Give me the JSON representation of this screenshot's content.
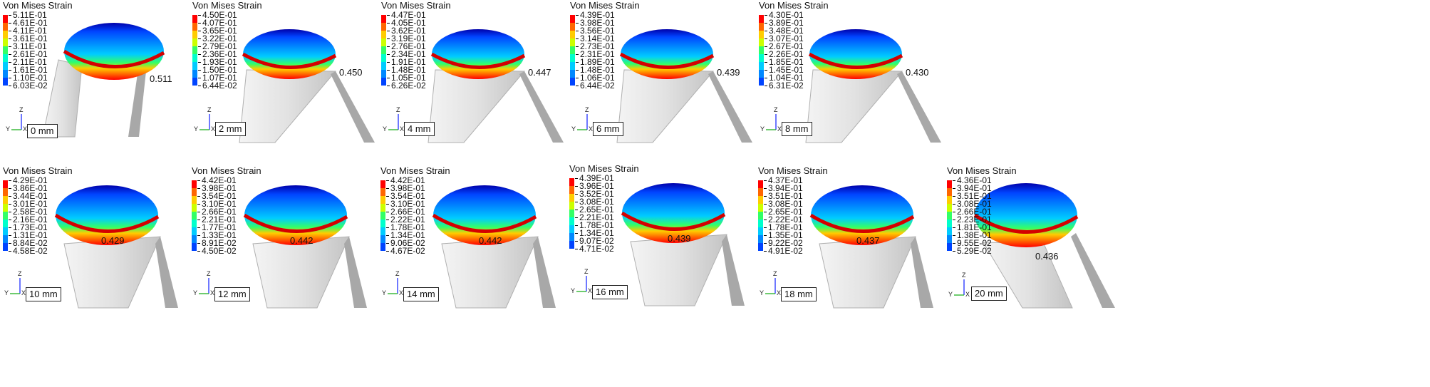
{
  "colors": [
    "#ff0000",
    "#ff6600",
    "#ffcc00",
    "#ccff00",
    "#33ff66",
    "#00ffcc",
    "#00ccff",
    "#0088ff",
    "#0044ff",
    "#0000cc"
  ],
  "panels": [
    {
      "title": "Von Mises Strain",
      "legend": [
        "5.11E-01",
        "4.61E-01",
        "4.11E-01",
        "3.61E-01",
        "3.11E-01",
        "2.61E-01",
        "2.11E-01",
        "1.61E-01",
        "1.10E-01",
        "6.03E-02"
      ],
      "max_label": "0.511",
      "distance": "0 mm",
      "axes": {
        "z": "Z",
        "y": "Y",
        "x": "X"
      }
    },
    {
      "title": "Von Mises Strain",
      "legend": [
        "4.50E-01",
        "4.07E-01",
        "3.65E-01",
        "3.22E-01",
        "2.79E-01",
        "2.36E-01",
        "1.93E-01",
        "1.50E-01",
        "1.07E-01",
        "6.44E-02"
      ],
      "max_label": "0.450",
      "distance": "2 mm",
      "axes": {
        "z": "Z",
        "y": "Y",
        "x": "X"
      }
    },
    {
      "title": "Von Mises Strain",
      "legend": [
        "4.47E-01",
        "4.05E-01",
        "3.62E-01",
        "3.19E-01",
        "2.76E-01",
        "2.34E-01",
        "1.91E-01",
        "1.48E-01",
        "1.05E-01",
        "6.26E-02"
      ],
      "max_label": "0.447",
      "distance": "4 mm",
      "axes": {
        "z": "Z",
        "y": "Y",
        "x": "X"
      }
    },
    {
      "title": "Von Mises Strain",
      "legend": [
        "4.39E-01",
        "3.98E-01",
        "3.56E-01",
        "3.14E-01",
        "2.73E-01",
        "2.31E-01",
        "1.89E-01",
        "1.48E-01",
        "1.06E-01",
        "6.44E-02"
      ],
      "max_label": "0.439",
      "distance": "6 mm",
      "axes": {
        "z": "Z",
        "y": "Y",
        "x": "X"
      }
    },
    {
      "title": "Von Mises Strain",
      "legend": [
        "4.30E-01",
        "3.89E-01",
        "3.48E-01",
        "3.07E-01",
        "2.67E-01",
        "2.26E-01",
        "1.85E-01",
        "1.45E-01",
        "1.04E-01",
        "6.31E-02"
      ],
      "max_label": "0.430",
      "distance": "8 mm",
      "axes": {
        "z": "Z",
        "y": "Y",
        "x": "X"
      }
    },
    {
      "title": "Von Mises Strain",
      "legend": [
        "4.29E-01",
        "3.86E-01",
        "3.44E-01",
        "3.01E-01",
        "2.58E-01",
        "2.16E-01",
        "1.73E-01",
        "1.31E-01",
        "8.84E-02",
        "4.58E-02"
      ],
      "max_label": "0.429",
      "distance": "10 mm",
      "axes": {
        "z": "Z",
        "y": "Y",
        "x": "X"
      }
    },
    {
      "title": "Von Mises Strain",
      "legend": [
        "4.42E-01",
        "3.98E-01",
        "3.54E-01",
        "3.10E-01",
        "2.66E-01",
        "2.21E-01",
        "1.77E-01",
        "1.33E-01",
        "8.91E-02",
        "4.50E-02"
      ],
      "max_label": "0.442",
      "distance": "12 mm",
      "axes": {
        "z": "Z",
        "y": "Y",
        "x": "X"
      }
    },
    {
      "title": "Von Mises Strain",
      "legend": [
        "4.42E-01",
        "3.98E-01",
        "3.54E-01",
        "3.10E-01",
        "2.66E-01",
        "2.22E-01",
        "1.78E-01",
        "1.34E-01",
        "9.06E-02",
        "4.67E-02"
      ],
      "max_label": "0.442",
      "distance": "14 mm",
      "axes": {
        "z": "Z",
        "y": "Y",
        "x": "X"
      }
    },
    {
      "title": "Von Mises Strain",
      "legend": [
        "4.39E-01",
        "3.96E-01",
        "3.52E-01",
        "3.08E-01",
        "2.65E-01",
        "2.21E-01",
        "1.78E-01",
        "1.34E-01",
        "9.07E-02",
        "4.71E-02"
      ],
      "max_label": "0.439",
      "distance": "16 mm",
      "axes": {
        "z": "Z",
        "y": "Y",
        "x": "X"
      }
    },
    {
      "title": "Von Mises Strain",
      "legend": [
        "4.37E-01",
        "3.94E-01",
        "3.51E-01",
        "3.08E-01",
        "2.65E-01",
        "2.22E-01",
        "1.78E-01",
        "1.35E-01",
        "9.22E-02",
        "4.91E-02"
      ],
      "max_label": "0.437",
      "distance": "18 mm",
      "axes": {
        "z": "Z",
        "y": "Y",
        "x": "X"
      }
    },
    {
      "title": "Von Mises Strain",
      "legend": [
        "4.36E-01",
        "3.94E-01",
        "3.51E-01",
        "3.08E-01",
        "2.66E-01",
        "2.23E-01",
        "1.81E-01",
        "1.38E-01",
        "9.55E-02",
        "5.29E-02"
      ],
      "max_label": "0.436",
      "distance": "20 mm",
      "axes": {
        "z": "Z",
        "y": "Y",
        "x": "X"
      }
    }
  ]
}
